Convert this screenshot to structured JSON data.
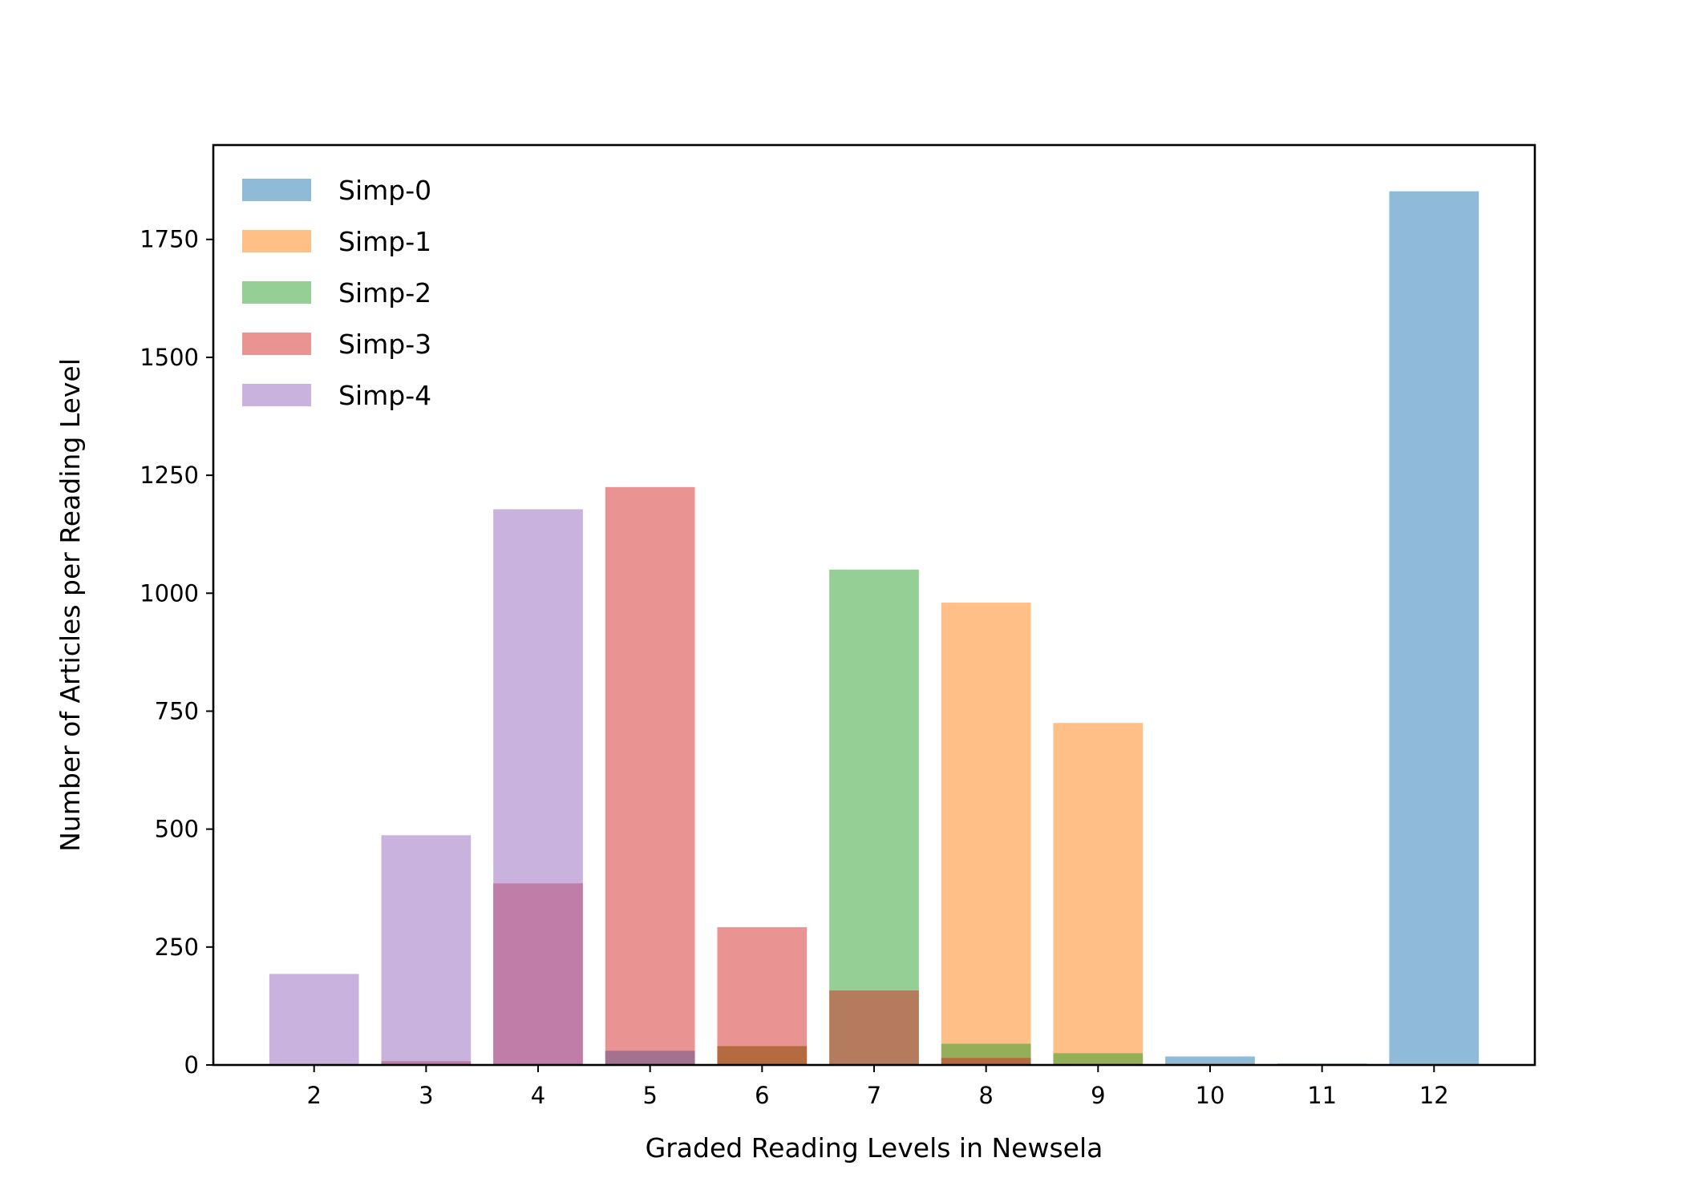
{
  "chart_data": {
    "type": "bar",
    "categories": [
      "2",
      "3",
      "4",
      "5",
      "6",
      "7",
      "8",
      "9",
      "10",
      "11",
      "12"
    ],
    "xlabel": "Graded Reading Levels in Newsela",
    "ylabel": "Number of Articles per Reading Level",
    "ylim": [
      0,
      1950
    ],
    "yticks": [
      "0",
      "250",
      "500",
      "750",
      "1000",
      "1250",
      "1500",
      "1750"
    ],
    "grid": false,
    "legend_position": "top-left",
    "bar_opacity": 0.5,
    "series": [
      {
        "name": "Simp-0",
        "color": "#1f77b4",
        "values": [
          0,
          0,
          0,
          0,
          0,
          0,
          0,
          0,
          18,
          3,
          1852
        ]
      },
      {
        "name": "Simp-1",
        "color": "#ff7f0e",
        "values": [
          0,
          0,
          0,
          0,
          40,
          0,
          980,
          725,
          3,
          0,
          0
        ]
      },
      {
        "name": "Simp-2",
        "color": "#2ca02c",
        "values": [
          0,
          0,
          0,
          30,
          40,
          1050,
          45,
          25,
          0,
          0,
          0
        ]
      },
      {
        "name": "Simp-3",
        "color": "#d62728",
        "values": [
          0,
          8,
          385,
          1225,
          292,
          158,
          15,
          0,
          0,
          0,
          0
        ]
      },
      {
        "name": "Simp-4",
        "color": "#9467bd",
        "values": [
          193,
          487,
          1178,
          30,
          0,
          0,
          0,
          0,
          0,
          0,
          0
        ]
      }
    ]
  }
}
